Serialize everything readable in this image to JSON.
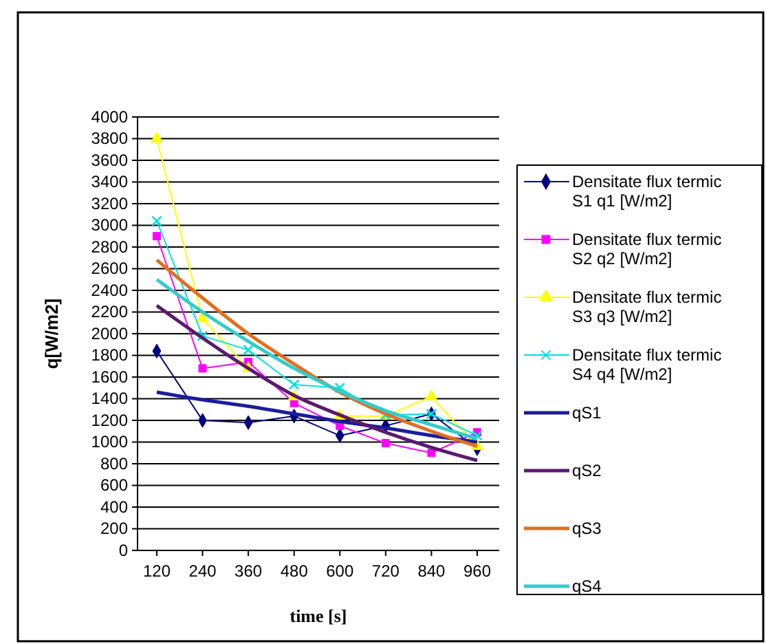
{
  "chart_data": {
    "type": "line",
    "xlabel": "time [s]",
    "ylabel": "q[W/m2]",
    "categories": [
      "120",
      "240",
      "360",
      "480",
      "600",
      "720",
      "840",
      "960"
    ],
    "ylim": [
      0,
      4000
    ],
    "yticks": [
      0,
      200,
      400,
      600,
      800,
      1000,
      1200,
      1400,
      1600,
      1800,
      2000,
      2200,
      2400,
      2600,
      2800,
      3000,
      3200,
      3400,
      3600,
      3800,
      4000
    ],
    "grid": "y",
    "legend": "right",
    "series": [
      {
        "name": "Densitate flux termic S1 q1 [W/m2]",
        "color": "#000080",
        "marker": "diamond",
        "values": [
          1840,
          1200,
          1180,
          1240,
          1060,
          1150,
          1260,
          940
        ]
      },
      {
        "name": "Densitate flux termic S2 q2 [W/m2]",
        "color": "#ff00ff",
        "marker": "square",
        "values": [
          2900,
          1680,
          1740,
          1360,
          1150,
          990,
          900,
          1090
        ]
      },
      {
        "name": "Densitate flux termic S3 q3 [W/m2]",
        "color": "#ffff00",
        "marker": "triangle",
        "values": [
          3800,
          2140,
          1680,
          1420,
          1240,
          1240,
          1420,
          960
        ]
      },
      {
        "name": "Densitate flux termic S4 q4 [W/m2]",
        "color": "#00e0e0",
        "marker": "cross",
        "values": [
          3040,
          1980,
          1850,
          1530,
          1500,
          1250,
          1260,
          1060
        ]
      },
      {
        "name": "qS1",
        "color": "#1c1c9c",
        "marker": "none",
        "values": [
          1460,
          1390,
          1330,
          1260,
          1190,
          1130,
          1060,
          1000
        ]
      },
      {
        "name": "qS2",
        "color": "#5a1a6e",
        "marker": "none",
        "values": [
          2260,
          1960,
          1680,
          1430,
          1250,
          1090,
          950,
          830
        ]
      },
      {
        "name": "qS3",
        "color": "#e07020",
        "marker": "none",
        "values": [
          2680,
          2330,
          2000,
          1720,
          1460,
          1260,
          1100,
          960
        ]
      },
      {
        "name": "qS4",
        "color": "#33cccc",
        "marker": "none",
        "values": [
          2500,
          2200,
          1930,
          1680,
          1470,
          1290,
          1160,
          1030
        ]
      }
    ]
  }
}
